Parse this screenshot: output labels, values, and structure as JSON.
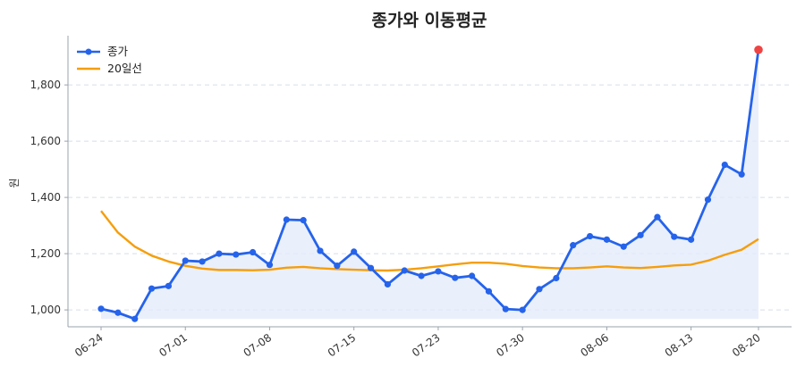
{
  "chart_data": {
    "type": "line",
    "title": "종가와 이동평균",
    "ylabel": "원",
    "xlabel": "",
    "ylim": [
      940,
      1975
    ],
    "y_ticks": [
      1000,
      1200,
      1400,
      1600,
      1800
    ],
    "y_tick_labels": [
      "1,000",
      "1,200",
      "1,400",
      "1,600",
      "1,800"
    ],
    "x_tick_labels": [
      "06-24",
      "07-01",
      "07-08",
      "07-15",
      "07-23",
      "07-30",
      "08-06",
      "08-13",
      "08-20"
    ],
    "x_tick_indices": [
      0,
      5,
      10,
      15,
      20,
      25,
      30,
      35,
      39
    ],
    "grid": true,
    "legend_position": "top-left",
    "colors": {
      "close": "#2563eb",
      "ma20": "#f59e0b",
      "fill": "#e3eafb",
      "last_point": "#ef4444",
      "grid": "#d8dde6",
      "axis": "#9aa3ad"
    },
    "series": [
      {
        "name": "종가",
        "key": "close",
        "values": [
          1004,
          990,
          968,
          1076,
          1085,
          1175,
          1172,
          1200,
          1197,
          1205,
          1160,
          1321,
          1319,
          1210,
          1157,
          1207,
          1149,
          1091,
          1140,
          1121,
          1137,
          1114,
          1121,
          1066,
          1003,
          1000,
          1074,
          1113,
          1230,
          1262,
          1250,
          1225,
          1266,
          1330,
          1260,
          1250,
          1392,
          1516,
          1482,
          1925
        ]
      },
      {
        "name": "20일선",
        "key": "ma20",
        "values": [
          1352,
          1275,
          1225,
          1193,
          1172,
          1157,
          1147,
          1142,
          1142,
          1141,
          1143,
          1150,
          1153,
          1148,
          1145,
          1143,
          1141,
          1140,
          1143,
          1148,
          1155,
          1162,
          1168,
          1168,
          1164,
          1156,
          1151,
          1148,
          1148,
          1151,
          1155,
          1151,
          1149,
          1153,
          1158,
          1161,
          1175,
          1196,
          1214,
          1252
        ]
      }
    ]
  }
}
